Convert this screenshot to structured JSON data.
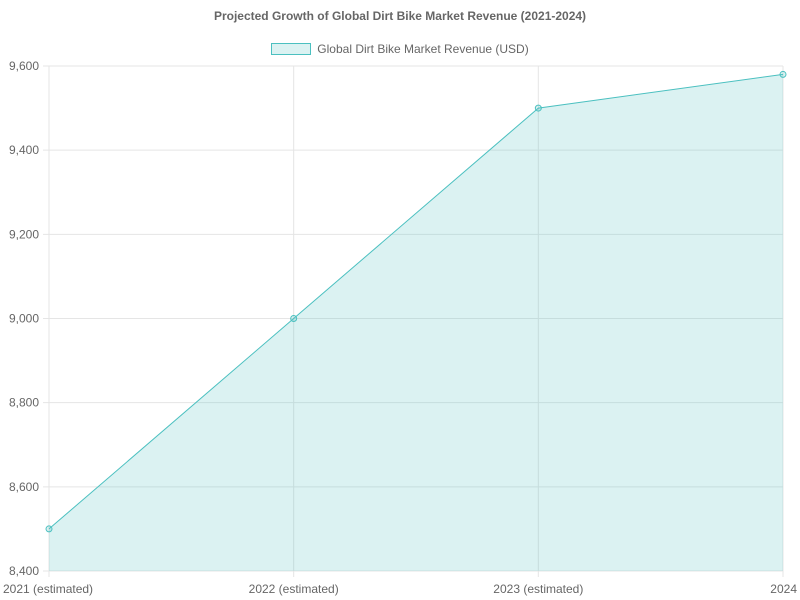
{
  "chart": {
    "title": "Projected Growth of Global Dirt Bike Market Revenue (2021-2024)",
    "legend_label": "Global Dirt Bike Market Revenue (USD)"
  },
  "colors": {
    "line": "#4bc0c0",
    "fill": "rgba(75,192,192,0.2)",
    "grid": "#e5e5e5",
    "text": "#666666"
  },
  "chart_data": {
    "type": "area",
    "title": "Projected Growth of Global Dirt Bike Market Revenue (2021-2024)",
    "xlabel": "",
    "ylabel": "",
    "categories": [
      "2021 (estimated)",
      "2022 (estimated)",
      "2023 (estimated)",
      "2024"
    ],
    "series": [
      {
        "name": "Global Dirt Bike Market Revenue (USD)",
        "values": [
          8500,
          9000,
          9500,
          9580
        ]
      }
    ],
    "ylim": [
      8400,
      9600
    ],
    "yticks": [
      "8,400",
      "8,600",
      "8,800",
      "9,000",
      "9,200",
      "9,400",
      "9,600"
    ],
    "grid": true,
    "legend_position": "top"
  }
}
